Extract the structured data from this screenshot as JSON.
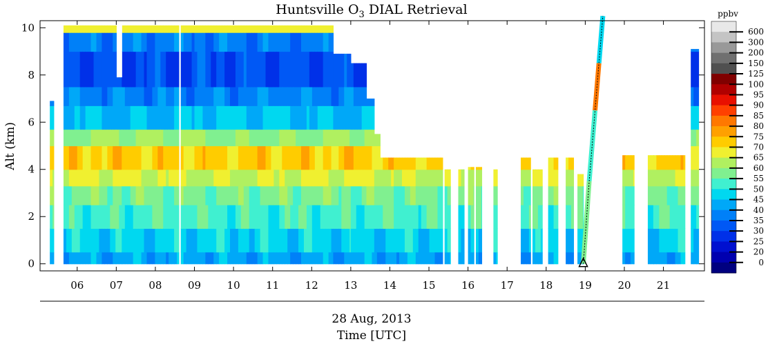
{
  "chart_data": {
    "type": "heatmap",
    "title": {
      "main": "Huntsville O",
      "sub": "3",
      "rest": " DIAL Retrieval"
    },
    "ylabel": "Alt (km)",
    "date_label": "28 Aug, 2013",
    "xlabel": "Time [UTC]",
    "colorbar_unit": "ppbv",
    "ylim": [
      -0.3,
      10.3
    ],
    "xlim": [
      5.05,
      22.05
    ],
    "y_ticks": [
      0,
      2,
      4,
      6,
      8,
      10
    ],
    "x_ticks": [
      {
        "label": "06",
        "value": 6.0
      },
      {
        "label": "07",
        "value": 7.0
      },
      {
        "label": "08",
        "value": 8.0
      },
      {
        "label": "09",
        "value": 9.0
      },
      {
        "label": "10",
        "value": 10.0
      },
      {
        "label": "11",
        "value": 11.0
      },
      {
        "label": "12",
        "value": 12.0
      },
      {
        "label": "13",
        "value": 13.0
      },
      {
        "label": "14",
        "value": 14.0
      },
      {
        "label": "15",
        "value": 15.0
      },
      {
        "label": "16",
        "value": 16.0
      },
      {
        "label": "17",
        "value": 17.0
      },
      {
        "label": "18",
        "value": 18.0
      },
      {
        "label": "19",
        "value": 19.0
      },
      {
        "label": "20",
        "value": 20.0
      },
      {
        "label": "21",
        "value": 21.0
      }
    ],
    "colorbar_levels": [
      {
        "label": "0",
        "color": "#000080"
      },
      {
        "label": "20",
        "color": "#0000b0"
      },
      {
        "label": "25",
        "color": "#0010d0"
      },
      {
        "label": "30",
        "color": "#0030e8"
      },
      {
        "label": "35",
        "color": "#0058f5"
      },
      {
        "label": "40",
        "color": "#0080f8"
      },
      {
        "label": "45",
        "color": "#00a8f8"
      },
      {
        "label": "50",
        "color": "#00d8f0"
      },
      {
        "label": "55",
        "color": "#40f0d0"
      },
      {
        "label": "60",
        "color": "#80f090"
      },
      {
        "label": "65",
        "color": "#b0f060"
      },
      {
        "label": "70",
        "color": "#f0f030"
      },
      {
        "label": "75",
        "color": "#ffcc00"
      },
      {
        "label": "80",
        "color": "#ffa000"
      },
      {
        "label": "85",
        "color": "#ff7800"
      },
      {
        "label": "90",
        "color": "#ff4000"
      },
      {
        "label": "95",
        "color": "#e81000"
      },
      {
        "label": "100",
        "color": "#b00000"
      },
      {
        "label": "125",
        "color": "#800000"
      },
      {
        "label": "150",
        "color": "#505050"
      },
      {
        "label": "200",
        "color": "#707070"
      },
      {
        "label": "300",
        "color": "#999999"
      },
      {
        "label": "600",
        "color": "#c4c4c4"
      }
    ],
    "colorbar_top_color": "#e8e8e8",
    "vertical_profiles": [
      {
        "name": "ozonesonde-launch",
        "marker_x": 18.95,
        "marker_y": 0.0,
        "path_x": [
          18.95,
          19.1,
          19.25,
          19.35,
          19.45
        ],
        "path_y": [
          0.0,
          3.5,
          6.5,
          8.5,
          10.5
        ]
      }
    ],
    "profile_segments": [
      {
        "x0": 18.95,
        "x1": 19.1,
        "y0": 0.0,
        "y1": 3.5,
        "value": 62
      },
      {
        "x0": 19.1,
        "x1": 19.25,
        "y0": 3.5,
        "y1": 6.5,
        "value": 55
      },
      {
        "x0": 19.25,
        "x1": 19.35,
        "y0": 6.5,
        "y1": 8.5,
        "value": 88
      },
      {
        "x0": 19.35,
        "x1": 19.45,
        "y0": 8.5,
        "y1": 10.5,
        "value": 52
      }
    ],
    "data_coverage": [
      {
        "t0": 5.3,
        "t1": 5.4,
        "top": 6.9
      },
      {
        "t0": 5.65,
        "t1": 7.0,
        "top": 10.1
      },
      {
        "t0": 7.0,
        "t1": 7.15,
        "top": 7.9
      },
      {
        "t0": 7.15,
        "t1": 8.6,
        "top": 10.1
      },
      {
        "t0": 8.65,
        "t1": 12.55,
        "top": 10.1
      },
      {
        "t0": 12.55,
        "t1": 13.0,
        "top": 8.9
      },
      {
        "t0": 13.0,
        "t1": 13.4,
        "top": 8.5
      },
      {
        "t0": 13.4,
        "t1": 13.6,
        "top": 7.0
      },
      {
        "t0": 13.6,
        "t1": 13.75,
        "top": 5.5
      },
      {
        "t0": 13.75,
        "t1": 15.35,
        "top": 4.5
      },
      {
        "t0": 15.4,
        "t1": 15.55,
        "top": 4.0
      },
      {
        "t0": 15.75,
        "t1": 15.9,
        "top": 4.0
      },
      {
        "t0": 16.0,
        "t1": 16.15,
        "top": 4.1
      },
      {
        "t0": 16.2,
        "t1": 16.35,
        "top": 4.1
      },
      {
        "t0": 16.65,
        "t1": 16.75,
        "top": 4.0
      },
      {
        "t0": 17.35,
        "t1": 17.6,
        "top": 4.5
      },
      {
        "t0": 17.65,
        "t1": 17.9,
        "top": 4.0
      },
      {
        "t0": 18.05,
        "t1": 18.3,
        "top": 4.5
      },
      {
        "t0": 18.5,
        "t1": 18.7,
        "top": 4.5
      },
      {
        "t0": 18.8,
        "t1": 18.95,
        "top": 3.8
      },
      {
        "t0": 19.95,
        "t1": 20.25,
        "top": 4.6
      },
      {
        "t0": 20.6,
        "t1": 20.75,
        "top": 4.6
      },
      {
        "t0": 20.75,
        "t1": 20.95,
        "top": 4.6
      },
      {
        "t0": 20.95,
        "t1": 21.55,
        "top": 4.6
      },
      {
        "t0": 21.7,
        "t1": 21.9,
        "top": 9.1
      }
    ],
    "vertical_profile_typical": [
      {
        "alt_min": 0.0,
        "alt_max": 0.5,
        "ozone_ppbv": 47
      },
      {
        "alt_min": 0.5,
        "alt_max": 1.5,
        "ozone_ppbv": 52
      },
      {
        "alt_min": 1.5,
        "alt_max": 2.5,
        "ozone_ppbv": 58
      },
      {
        "alt_min": 2.5,
        "alt_max": 3.3,
        "ozone_ppbv": 62
      },
      {
        "alt_min": 3.3,
        "alt_max": 4.0,
        "ozone_ppbv": 70
      },
      {
        "alt_min": 4.0,
        "alt_max": 5.0,
        "ozone_ppbv": 77
      },
      {
        "alt_min": 5.0,
        "alt_max": 5.7,
        "ozone_ppbv": 65
      },
      {
        "alt_min": 5.7,
        "alt_max": 6.7,
        "ozone_ppbv": 50
      },
      {
        "alt_min": 6.7,
        "alt_max": 7.5,
        "ozone_ppbv": 43
      },
      {
        "alt_min": 7.5,
        "alt_max": 9.0,
        "ozone_ppbv": 36
      },
      {
        "alt_min": 9.0,
        "alt_max": 9.8,
        "ozone_ppbv": 42
      },
      {
        "alt_min": 9.8,
        "alt_max": 10.1,
        "ozone_ppbv": 70
      }
    ],
    "grid": false,
    "legend": "right"
  }
}
